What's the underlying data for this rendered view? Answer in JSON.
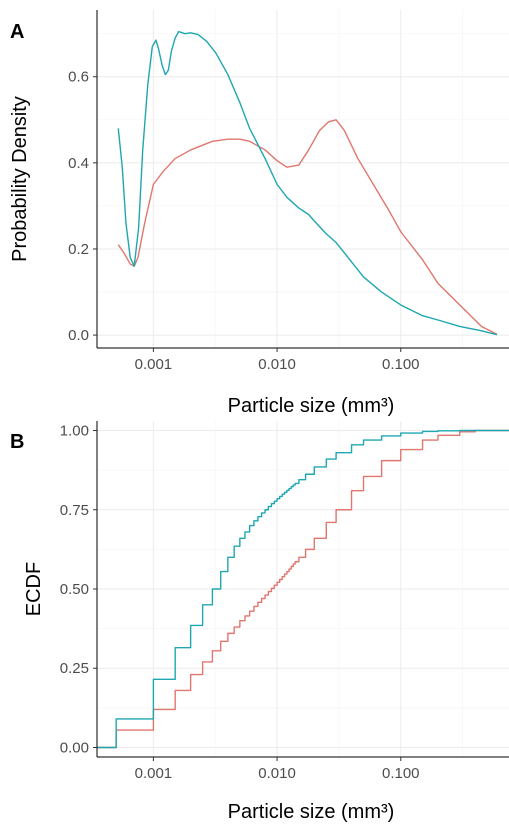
{
  "colors": {
    "series_a": "#e0766e",
    "series_b": "#1ea7b0"
  },
  "chart_data": [
    {
      "type": "line",
      "panel_tag": "A",
      "xlabel": "Particle size (mm³)",
      "ylabel": "Probability Density",
      "x_scale": "log10",
      "xlim": [
        0.00035,
        0.75
      ],
      "ylim": [
        -0.03,
        0.755
      ],
      "x_ticks": [
        0.001,
        0.01,
        0.1
      ],
      "x_tick_labels": [
        "0.001",
        "0.010",
        "0.100"
      ],
      "y_ticks": [
        0.0,
        0.2,
        0.4,
        0.6
      ],
      "y_tick_labels": [
        "0.0",
        "0.2",
        "0.4",
        "0.6"
      ],
      "grid": true,
      "series": [
        {
          "color": "#e0766e",
          "x": [
            0.00052,
            0.00058,
            0.00065,
            0.0007,
            0.00075,
            0.00085,
            0.001,
            0.0012,
            0.0015,
            0.002,
            0.003,
            0.004,
            0.005,
            0.006,
            0.008,
            0.01,
            0.012,
            0.015,
            0.018,
            0.022,
            0.026,
            0.03,
            0.035,
            0.045,
            0.06,
            0.08,
            0.1,
            0.15,
            0.2,
            0.3,
            0.45,
            0.6
          ],
          "y": [
            0.21,
            0.19,
            0.165,
            0.16,
            0.18,
            0.26,
            0.35,
            0.38,
            0.41,
            0.43,
            0.45,
            0.455,
            0.455,
            0.45,
            0.43,
            0.405,
            0.39,
            0.395,
            0.43,
            0.475,
            0.495,
            0.5,
            0.475,
            0.41,
            0.35,
            0.29,
            0.24,
            0.175,
            0.12,
            0.07,
            0.02,
            0.002
          ]
        },
        {
          "color": "#1ea7b0",
          "x": [
            0.00052,
            0.00056,
            0.0006,
            0.00065,
            0.0007,
            0.00076,
            0.00082,
            0.0009,
            0.00098,
            0.00105,
            0.0011,
            0.00118,
            0.00125,
            0.00132,
            0.0014,
            0.0015,
            0.0016,
            0.0018,
            0.002,
            0.0023,
            0.0027,
            0.0032,
            0.004,
            0.005,
            0.006,
            0.008,
            0.01,
            0.012,
            0.015,
            0.018,
            0.02,
            0.025,
            0.03,
            0.04,
            0.05,
            0.07,
            0.1,
            0.15,
            0.2,
            0.3,
            0.45,
            0.6
          ],
          "y": [
            0.48,
            0.39,
            0.26,
            0.18,
            0.16,
            0.25,
            0.43,
            0.58,
            0.67,
            0.685,
            0.665,
            0.625,
            0.605,
            0.615,
            0.66,
            0.69,
            0.705,
            0.7,
            0.702,
            0.698,
            0.682,
            0.655,
            0.605,
            0.54,
            0.48,
            0.41,
            0.35,
            0.32,
            0.295,
            0.28,
            0.265,
            0.235,
            0.215,
            0.17,
            0.135,
            0.1,
            0.07,
            0.045,
            0.035,
            0.02,
            0.01,
            0.001
          ]
        }
      ]
    },
    {
      "type": "line",
      "panel_tag": "B",
      "xlabel": "Particle size (mm³)",
      "ylabel": "ECDF",
      "x_scale": "log10",
      "step": true,
      "xlim": [
        0.00035,
        0.75
      ],
      "ylim": [
        -0.03,
        1.03
      ],
      "x_ticks": [
        0.001,
        0.01,
        0.1
      ],
      "x_tick_labels": [
        "0.001",
        "0.010",
        "0.100"
      ],
      "y_ticks": [
        0.0,
        0.25,
        0.5,
        0.75,
        1.0
      ],
      "y_tick_labels": [
        "0.00",
        "0.25",
        "0.50",
        "0.75",
        "1.00"
      ],
      "grid": true,
      "series": [
        {
          "color": "#e0766e",
          "x": [
            0.0005,
            0.001,
            0.0015,
            0.002,
            0.0025,
            0.003,
            0.0035,
            0.004,
            0.0045,
            0.005,
            0.0055,
            0.006,
            0.0065,
            0.007,
            0.0075,
            0.008,
            0.0085,
            0.009,
            0.0095,
            0.01,
            0.0105,
            0.011,
            0.0115,
            0.012,
            0.0125,
            0.013,
            0.0135,
            0.014,
            0.015,
            0.017,
            0.02,
            0.025,
            0.03,
            0.04,
            0.05,
            0.07,
            0.1,
            0.15,
            0.2,
            0.3,
            0.4
          ],
          "y": [
            0.055,
            0.12,
            0.18,
            0.23,
            0.27,
            0.305,
            0.335,
            0.36,
            0.38,
            0.4,
            0.415,
            0.43,
            0.445,
            0.458,
            0.47,
            0.481,
            0.492,
            0.502,
            0.512,
            0.521,
            0.53,
            0.539,
            0.547,
            0.555,
            0.563,
            0.571,
            0.579,
            0.586,
            0.6,
            0.625,
            0.66,
            0.71,
            0.75,
            0.81,
            0.855,
            0.905,
            0.94,
            0.97,
            0.985,
            0.996,
            1.0
          ]
        },
        {
          "color": "#1ea7b0",
          "x": [
            0.0005,
            0.001,
            0.0015,
            0.002,
            0.0025,
            0.003,
            0.0035,
            0.004,
            0.0045,
            0.005,
            0.0055,
            0.006,
            0.0065,
            0.007,
            0.0075,
            0.008,
            0.0085,
            0.009,
            0.0095,
            0.01,
            0.0105,
            0.011,
            0.0115,
            0.012,
            0.0125,
            0.013,
            0.0135,
            0.014,
            0.015,
            0.017,
            0.02,
            0.025,
            0.03,
            0.04,
            0.05,
            0.07,
            0.1,
            0.15,
            0.2,
            0.3,
            0.4
          ],
          "y": [
            0.09,
            0.215,
            0.315,
            0.385,
            0.45,
            0.5,
            0.555,
            0.6,
            0.635,
            0.66,
            0.68,
            0.7,
            0.715,
            0.728,
            0.74,
            0.75,
            0.76,
            0.769,
            0.777,
            0.785,
            0.792,
            0.799,
            0.805,
            0.811,
            0.817,
            0.823,
            0.828,
            0.833,
            0.845,
            0.862,
            0.885,
            0.91,
            0.93,
            0.955,
            0.97,
            0.983,
            0.992,
            0.997,
            0.999,
            1.0,
            1.0
          ]
        }
      ]
    }
  ]
}
